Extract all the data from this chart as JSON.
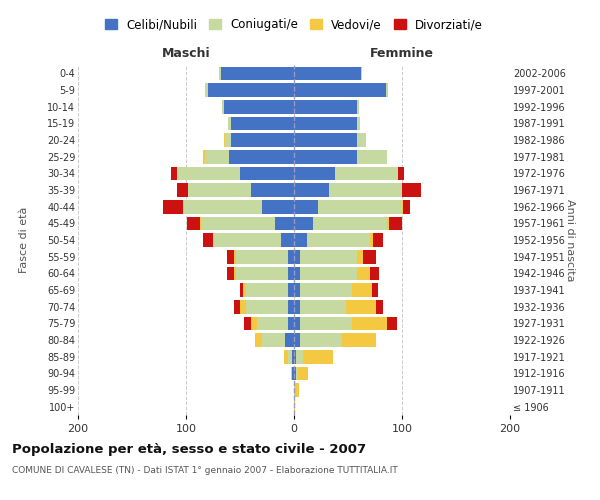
{
  "age_groups": [
    "100+",
    "95-99",
    "90-94",
    "85-89",
    "80-84",
    "75-79",
    "70-74",
    "65-69",
    "60-64",
    "55-59",
    "50-54",
    "45-49",
    "40-44",
    "35-39",
    "30-34",
    "25-29",
    "20-24",
    "15-19",
    "10-14",
    "5-9",
    "0-4"
  ],
  "birth_years": [
    "≤ 1906",
    "1907-1911",
    "1912-1916",
    "1917-1921",
    "1922-1926",
    "1927-1931",
    "1932-1936",
    "1937-1941",
    "1942-1946",
    "1947-1951",
    "1952-1956",
    "1957-1961",
    "1962-1966",
    "1967-1971",
    "1972-1976",
    "1977-1981",
    "1982-1986",
    "1987-1991",
    "1992-1996",
    "1997-2001",
    "2002-2006"
  ],
  "maschi": {
    "celibi": [
      0,
      0,
      2,
      2,
      8,
      6,
      6,
      6,
      6,
      6,
      12,
      18,
      30,
      40,
      50,
      60,
      58,
      58,
      65,
      80,
      68
    ],
    "coniugati": [
      0,
      0,
      1,
      4,
      22,
      28,
      38,
      38,
      48,
      48,
      62,
      68,
      72,
      58,
      58,
      22,
      6,
      3,
      2,
      2,
      1
    ],
    "vedovi": [
      0,
      0,
      0,
      3,
      6,
      6,
      6,
      3,
      2,
      2,
      1,
      1,
      1,
      0,
      0,
      2,
      1,
      0,
      0,
      0,
      0
    ],
    "divorziati": [
      0,
      0,
      0,
      0,
      0,
      6,
      6,
      3,
      6,
      6,
      9,
      12,
      18,
      10,
      6,
      0,
      0,
      0,
      0,
      0,
      0
    ]
  },
  "femmine": {
    "nubili": [
      0,
      0,
      2,
      2,
      6,
      6,
      6,
      6,
      6,
      6,
      12,
      18,
      22,
      32,
      38,
      58,
      58,
      58,
      58,
      85,
      62
    ],
    "coniugate": [
      0,
      1,
      2,
      6,
      38,
      48,
      42,
      48,
      52,
      52,
      58,
      68,
      78,
      68,
      58,
      28,
      9,
      3,
      2,
      2,
      1
    ],
    "vedove": [
      1,
      4,
      9,
      28,
      32,
      32,
      28,
      18,
      12,
      6,
      3,
      2,
      1,
      0,
      0,
      0,
      0,
      0,
      0,
      0,
      0
    ],
    "divorziate": [
      0,
      0,
      0,
      0,
      0,
      9,
      6,
      6,
      9,
      12,
      9,
      12,
      6,
      18,
      6,
      0,
      0,
      0,
      0,
      0,
      0
    ]
  },
  "colors": {
    "celibi": "#4472C4",
    "coniugati": "#c5d9a0",
    "vedovi": "#f5c842",
    "divorziati": "#cc1111"
  },
  "legend_labels": [
    "Celibi/Nubili",
    "Coniugati/e",
    "Vedovi/e",
    "Divorziati/e"
  ],
  "title": "Popolazione per età, sesso e stato civile - 2007",
  "subtitle": "COMUNE DI CAVALESE (TN) - Dati ISTAT 1° gennaio 2007 - Elaborazione TUTTITALIA.IT",
  "xlabel_left": "Maschi",
  "xlabel_right": "Femmine",
  "ylabel_left": "Fasce di età",
  "ylabel_right": "Anni di nascita",
  "xlim": 200,
  "background_color": "#ffffff",
  "grid_color": "#cccccc"
}
